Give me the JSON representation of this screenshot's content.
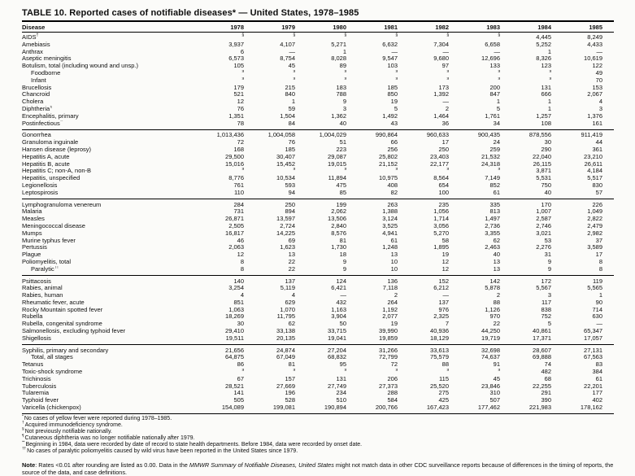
{
  "title": "TABLE 10. Reported cases of notifiable diseases* — United States, 1978–1985",
  "columns": {
    "disease": "Disease",
    "years": [
      "1978",
      "1979",
      "1980",
      "1981",
      "1982",
      "1983",
      "1984",
      "1985"
    ]
  },
  "symbol_legend": {
    "not_notifiable": "§",
    "no_cases": "—"
  },
  "rows": [
    {
      "name": "AIDS",
      "sup": "†",
      "indent": 0,
      "group": false,
      "values": [
        "§",
        "§",
        "§",
        "§",
        "§",
        "§",
        "4,445",
        "8,249"
      ]
    },
    {
      "name": "Amebiasis",
      "sup": "",
      "indent": 0,
      "group": false,
      "values": [
        "3,937",
        "4,107",
        "5,271",
        "6,632",
        "7,304",
        "6,658",
        "5,252",
        "4,433"
      ]
    },
    {
      "name": "Anthrax",
      "sup": "",
      "indent": 0,
      "group": false,
      "values": [
        "6",
        "—",
        "1",
        "—",
        "—",
        "—",
        "1",
        "—"
      ]
    },
    {
      "name": "Aseptic meningitis",
      "sup": "",
      "indent": 0,
      "group": false,
      "values": [
        "6,573",
        "8,754",
        "8,028",
        "9,547",
        "9,680",
        "12,696",
        "8,326",
        "10,619"
      ]
    },
    {
      "name": "Botulism, total (including wound and unsp.)",
      "sup": "",
      "indent": 0,
      "group": false,
      "values": [
        "105",
        "45",
        "89",
        "103",
        "97",
        "133",
        "123",
        "122"
      ]
    },
    {
      "name": "Foodborne",
      "sup": "",
      "indent": 1,
      "group": false,
      "values": [
        "§",
        "§",
        "§",
        "§",
        "§",
        "§",
        "§",
        "49"
      ]
    },
    {
      "name": "Infant",
      "sup": "",
      "indent": 1,
      "group": false,
      "values": [
        "§",
        "§",
        "§",
        "§",
        "§",
        "§",
        "§",
        "70"
      ]
    },
    {
      "name": "Brucellosis",
      "sup": "",
      "indent": 0,
      "group": false,
      "values": [
        "179",
        "215",
        "183",
        "185",
        "173",
        "200",
        "131",
        "153"
      ]
    },
    {
      "name": "Chancroid",
      "sup": "",
      "indent": 0,
      "group": false,
      "values": [
        "521",
        "840",
        "788",
        "850",
        "1,392",
        "847",
        "666",
        "2,067"
      ]
    },
    {
      "name": "Cholera",
      "sup": "",
      "indent": 0,
      "group": false,
      "values": [
        "12",
        "1",
        "9",
        "19",
        "—",
        "1",
        "1",
        "4"
      ]
    },
    {
      "name": "Diphtheria",
      "sup": "¶",
      "indent": 0,
      "group": false,
      "values": [
        "76",
        "59",
        "3",
        "5",
        "2",
        "5",
        "1",
        "3"
      ]
    },
    {
      "name": "Encephalitis, primary",
      "sup": "",
      "indent": 0,
      "group": false,
      "values": [
        "1,351",
        "1,504",
        "1,362",
        "1,492",
        "1,464",
        "1,761",
        "1,257",
        "1,376"
      ]
    },
    {
      "name": "Postinfectious",
      "sup": "**",
      "indent": 0,
      "group": false,
      "values": [
        "78",
        "84",
        "40",
        "43",
        "36",
        "34",
        "108",
        "161"
      ]
    },
    {
      "name": "Gonorrhea",
      "sup": "",
      "indent": 0,
      "group": true,
      "values": [
        "1,013,436",
        "1,004,058",
        "1,004,029",
        "990,864",
        "960,633",
        "900,435",
        "878,556",
        "911,419"
      ]
    },
    {
      "name": "Granuloma inguinale",
      "sup": "",
      "indent": 0,
      "group": false,
      "values": [
        "72",
        "76",
        "51",
        "66",
        "17",
        "24",
        "30",
        "44"
      ]
    },
    {
      "name": "Hansen disease (leprosy)",
      "sup": "",
      "indent": 0,
      "group": false,
      "values": [
        "168",
        "185",
        "223",
        "256",
        "250",
        "259",
        "290",
        "361"
      ]
    },
    {
      "name": "Hepatitis A, acute",
      "sup": "",
      "indent": 0,
      "group": false,
      "values": [
        "29,500",
        "30,407",
        "29,087",
        "25,802",
        "23,403",
        "21,532",
        "22,040",
        "23,210"
      ]
    },
    {
      "name": "Hepatitis B, acute",
      "sup": "",
      "indent": 0,
      "group": false,
      "values": [
        "15,016",
        "15,452",
        "19,015",
        "21,152",
        "22,177",
        "24,318",
        "26,115",
        "26,611"
      ]
    },
    {
      "name": "Hepatitis C; non-A, non-B",
      "sup": "",
      "indent": 0,
      "group": false,
      "values": [
        "§",
        "§",
        "§",
        "§",
        "§",
        "§",
        "3,871",
        "4,184"
      ]
    },
    {
      "name": "Hepatitis, unspecified",
      "sup": "",
      "indent": 0,
      "group": false,
      "values": [
        "8,776",
        "10,534",
        "11,894",
        "10,975",
        "8,564",
        "7,149",
        "5,531",
        "5,517"
      ]
    },
    {
      "name": "Legionellosis",
      "sup": "",
      "indent": 0,
      "group": false,
      "values": [
        "761",
        "593",
        "475",
        "408",
        "654",
        "852",
        "750",
        "830"
      ]
    },
    {
      "name": "Leptospirosis",
      "sup": "",
      "indent": 0,
      "group": false,
      "values": [
        "110",
        "94",
        "85",
        "82",
        "100",
        "61",
        "40",
        "57"
      ]
    },
    {
      "name": "Lymphogranuloma venereum",
      "sup": "",
      "indent": 0,
      "group": true,
      "values": [
        "284",
        "250",
        "199",
        "263",
        "235",
        "335",
        "170",
        "226"
      ]
    },
    {
      "name": "Malaria",
      "sup": "",
      "indent": 0,
      "group": false,
      "values": [
        "731",
        "894",
        "2,062",
        "1,388",
        "1,056",
        "813",
        "1,007",
        "1,049"
      ]
    },
    {
      "name": "Measles",
      "sup": "",
      "indent": 0,
      "group": false,
      "values": [
        "26,871",
        "13,597",
        "13,506",
        "3,124",
        "1,714",
        "1,497",
        "2,587",
        "2,822"
      ]
    },
    {
      "name": "Meningococcal disease",
      "sup": "",
      "indent": 0,
      "group": false,
      "values": [
        "2,505",
        "2,724",
        "2,840",
        "3,525",
        "3,056",
        "2,736",
        "2,746",
        "2,479"
      ]
    },
    {
      "name": "Mumps",
      "sup": "",
      "indent": 0,
      "group": false,
      "values": [
        "16,817",
        "14,225",
        "8,576",
        "4,941",
        "5,270",
        "3,355",
        "3,021",
        "2,982"
      ]
    },
    {
      "name": "Murine typhus fever",
      "sup": "",
      "indent": 0,
      "group": false,
      "values": [
        "46",
        "69",
        "81",
        "61",
        "58",
        "62",
        "53",
        "37"
      ]
    },
    {
      "name": "Pertussis",
      "sup": "",
      "indent": 0,
      "group": false,
      "values": [
        "2,063",
        "1,623",
        "1,730",
        "1,248",
        "1,895",
        "2,463",
        "2,276",
        "3,589"
      ]
    },
    {
      "name": "Plague",
      "sup": "",
      "indent": 0,
      "group": false,
      "values": [
        "12",
        "13",
        "18",
        "13",
        "19",
        "40",
        "31",
        "17"
      ]
    },
    {
      "name": "Poliomyelitis, total",
      "sup": "",
      "indent": 0,
      "group": false,
      "values": [
        "8",
        "22",
        "9",
        "10",
        "12",
        "13",
        "9",
        "8"
      ]
    },
    {
      "name": "Paralytic",
      "sup": "††",
      "indent": 1,
      "group": false,
      "values": [
        "8",
        "22",
        "9",
        "10",
        "12",
        "13",
        "9",
        "8"
      ]
    },
    {
      "name": "Psittacosis",
      "sup": "",
      "indent": 0,
      "group": true,
      "values": [
        "140",
        "137",
        "124",
        "136",
        "152",
        "142",
        "172",
        "119"
      ]
    },
    {
      "name": "Rabies, animal",
      "sup": "",
      "indent": 0,
      "group": false,
      "values": [
        "3,254",
        "5,119",
        "6,421",
        "7,118",
        "6,212",
        "5,878",
        "5,567",
        "5,565"
      ]
    },
    {
      "name": "Rabies, human",
      "sup": "",
      "indent": 0,
      "group": false,
      "values": [
        "4",
        "4",
        "—",
        "2",
        "—",
        "2",
        "3",
        "1"
      ]
    },
    {
      "name": "Rheumatic fever, acute",
      "sup": "",
      "indent": 0,
      "group": false,
      "values": [
        "851",
        "629",
        "432",
        "264",
        "137",
        "88",
        "117",
        "90"
      ]
    },
    {
      "name": "Rocky Mountain spotted fever",
      "sup": "",
      "indent": 0,
      "group": false,
      "values": [
        "1,063",
        "1,070",
        "1,163",
        "1,192",
        "976",
        "1,126",
        "838",
        "714"
      ]
    },
    {
      "name": "Rubella",
      "sup": "",
      "indent": 0,
      "group": false,
      "values": [
        "18,269",
        "11,795",
        "3,904",
        "2,077",
        "2,325",
        "970",
        "752",
        "630"
      ]
    },
    {
      "name": "Rubella, congenital syndrome",
      "sup": "",
      "indent": 0,
      "group": false,
      "values": [
        "30",
        "62",
        "50",
        "19",
        "7",
        "22",
        "5",
        "—"
      ]
    },
    {
      "name": "Salmonellosis, excluding typhoid fever",
      "sup": "",
      "indent": 0,
      "group": false,
      "values": [
        "29,410",
        "33,138",
        "33,715",
        "39,990",
        "40,936",
        "44,250",
        "40,861",
        "65,347"
      ]
    },
    {
      "name": "Shigellosis",
      "sup": "",
      "indent": 0,
      "group": false,
      "values": [
        "19,511",
        "20,135",
        "19,041",
        "19,859",
        "18,129",
        "19,719",
        "17,371",
        "17,057"
      ]
    },
    {
      "name": "Syphilis, primary and secondary",
      "sup": "",
      "indent": 0,
      "group": true,
      "values": [
        "21,656",
        "24,874",
        "27,204",
        "31,266",
        "33,613",
        "32,698",
        "28,607",
        "27,131"
      ]
    },
    {
      "name": "Total, all stages",
      "sup": "",
      "indent": 1,
      "group": false,
      "values": [
        "64,875",
        "67,049",
        "68,832",
        "72,799",
        "75,579",
        "74,637",
        "69,888",
        "67,563"
      ]
    },
    {
      "name": "Tetanus",
      "sup": "",
      "indent": 0,
      "group": false,
      "values": [
        "86",
        "81",
        "95",
        "72",
        "88",
        "91",
        "74",
        "83"
      ]
    },
    {
      "name": "Toxic-shock syndrome",
      "sup": "",
      "indent": 0,
      "group": false,
      "values": [
        "§",
        "§",
        "§",
        "§",
        "§",
        "§",
        "482",
        "384"
      ]
    },
    {
      "name": "Trichinosis",
      "sup": "",
      "indent": 0,
      "group": false,
      "values": [
        "67",
        "157",
        "131",
        "206",
        "115",
        "45",
        "68",
        "61"
      ]
    },
    {
      "name": "Tuberculosis",
      "sup": "",
      "indent": 0,
      "group": false,
      "values": [
        "28,521",
        "27,669",
        "27,749",
        "27,373",
        "25,520",
        "23,846",
        "22,255",
        "22,201"
      ]
    },
    {
      "name": "Tularemia",
      "sup": "",
      "indent": 0,
      "group": false,
      "values": [
        "141",
        "196",
        "234",
        "288",
        "275",
        "310",
        "291",
        "177"
      ]
    },
    {
      "name": "Typhoid fever",
      "sup": "",
      "indent": 0,
      "group": false,
      "values": [
        "505",
        "528",
        "510",
        "584",
        "425",
        "507",
        "390",
        "402"
      ]
    },
    {
      "name": "Varicella (chickenpox)",
      "sup": "",
      "indent": 0,
      "group": false,
      "values": [
        "154,089",
        "199,081",
        "190,894",
        "200,766",
        "167,423",
        "177,462",
        "221,983",
        "178,162"
      ]
    }
  ],
  "footnotes": [
    {
      "marker": "*",
      "text": "No cases of yellow fever were reported during 1978–1985."
    },
    {
      "marker": "†",
      "text": "Acquired immunodeficiency syndrome."
    },
    {
      "marker": "§",
      "text": "Not previously notifiable nationally."
    },
    {
      "marker": "¶",
      "text": "Cutaneous diphtheria was no longer notifiable nationally after 1979."
    },
    {
      "marker": "**",
      "text": "Beginning in 1984, data were recorded by date of record to state health departments. Before 1984, data were recorded by onset date."
    },
    {
      "marker": "††",
      "text": "No cases of paralytic poliomyelitis caused by wild virus have been reported in the United States since 1979."
    }
  ],
  "note": {
    "label": "Note",
    "before_italic": ": Rates <0.01 after rounding are listed as 0.00. Data in the ",
    "italic": "MMWR Summary of Notifiable Diseases, United States",
    "after_italic": " might not match data in other CDC surveillance reports because of differences in the timing of reports, the source of the data, and case definitions."
  }
}
